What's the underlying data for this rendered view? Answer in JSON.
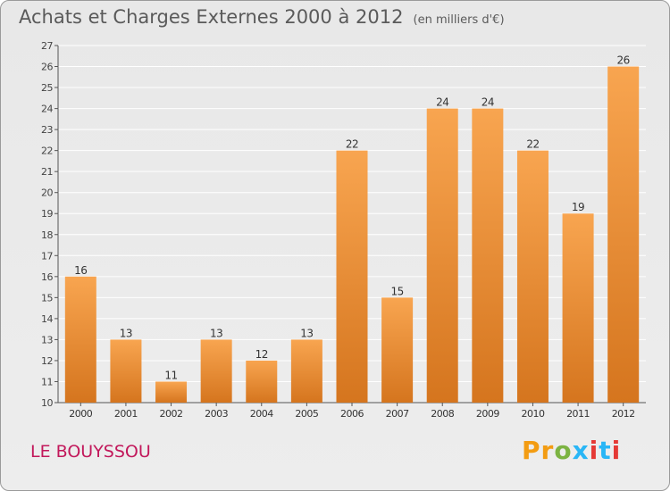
{
  "title": "Achats et Charges Externes 2000 à 2012",
  "unit": "(en milliers d'€)",
  "commune": "LE BOUYSSOU",
  "logo": {
    "text": "Proxiti",
    "icon": "proxiti-logo"
  },
  "colors": {
    "bar_top": "#f8a550",
    "bar_bottom": "#d5751e",
    "title": "#5a5a5a",
    "commune": "#c2185b"
  },
  "chart_data": {
    "type": "bar",
    "categories": [
      "2000",
      "2001",
      "2002",
      "2003",
      "2004",
      "2005",
      "2006",
      "2007",
      "2008",
      "2009",
      "2010",
      "2011",
      "2012"
    ],
    "values": [
      16,
      13,
      11,
      13,
      12,
      13,
      22,
      15,
      24,
      24,
      22,
      19,
      26
    ],
    "ylim": [
      10,
      27
    ],
    "yticks": [
      10,
      11,
      12,
      13,
      14,
      15,
      16,
      17,
      18,
      19,
      20,
      21,
      22,
      23,
      24,
      25,
      26,
      27
    ],
    "grid": true,
    "data_labels": true
  }
}
